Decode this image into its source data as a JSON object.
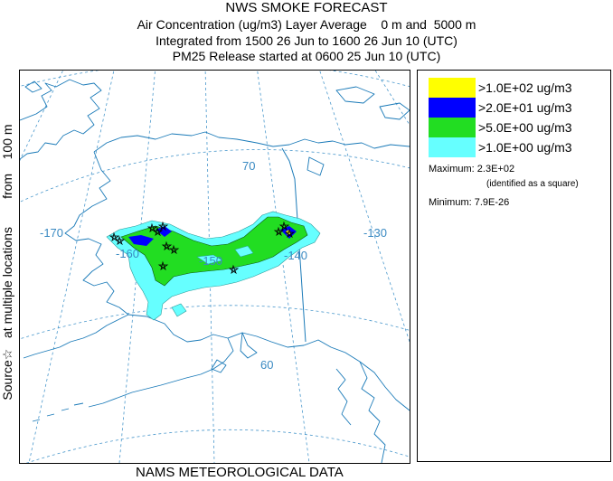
{
  "header": {
    "title": "NWS SMOKE FORECAST",
    "line2": "Air Concentration (ug/m3) Layer Average    0 m and  5000 m",
    "line3": "Integrated from 1500 26 Jun to 1600 26 Jun 10 (UTC)",
    "line4": "PM25 Release started at 0600 25 Jun 10 (UTC)"
  },
  "side_label": "Source☆   at multiple locations        from    100 m",
  "footer": "NAMS METEOROLOGICAL DATA",
  "map": {
    "graticule_labels": {
      "lat70": "70",
      "lat60": "60",
      "lon_m170": "-170",
      "lon_m160": "-160",
      "lon_m150": "-150",
      "lon_m140": "-140",
      "lon_m130": "-130"
    },
    "colors": {
      "coast": "#1a7ab8",
      "graticule": "#4a98cc",
      "label": "#3a8ac2"
    }
  },
  "legend": {
    "items": [
      {
        "label": ">1.0E+02 ug/m3",
        "color": "#ffff00"
      },
      {
        "label": ">2.0E+01 ug/m3",
        "color": "#0000ff"
      },
      {
        "label": ">5.0E+00 ug/m3",
        "color": "#22dd22"
      },
      {
        "label": ">1.0E+00 ug/m3",
        "color": "#66ffff"
      }
    ],
    "maximum_label": "Maximum: 2.3E+02",
    "maximum_note": "(identified as a square)",
    "minimum_label": "Minimum: 7.9E-26"
  }
}
